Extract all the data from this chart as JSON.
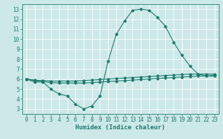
{
  "line1_x": [
    0,
    1,
    2,
    3,
    4,
    5,
    6,
    7,
    8,
    9,
    10,
    11,
    12,
    13,
    14,
    15,
    16,
    17,
    18,
    19,
    20,
    21,
    22,
    23
  ],
  "line1_y": [
    6.0,
    5.7,
    5.7,
    5.0,
    4.5,
    4.3,
    3.5,
    3.0,
    3.3,
    4.3,
    7.8,
    10.5,
    11.8,
    12.9,
    13.0,
    12.9,
    12.2,
    11.3,
    9.7,
    8.4,
    7.3,
    6.5,
    6.3,
    6.4
  ],
  "line2_x": [
    0,
    1,
    2,
    3,
    4,
    5,
    6,
    7,
    8,
    9,
    10,
    11,
    12,
    13,
    14,
    15,
    16,
    17,
    18,
    19,
    20,
    21,
    22,
    23
  ],
  "line2_y": [
    6.0,
    5.9,
    5.85,
    5.8,
    5.8,
    5.8,
    5.8,
    5.85,
    5.9,
    5.95,
    6.0,
    6.05,
    6.1,
    6.15,
    6.2,
    6.25,
    6.3,
    6.35,
    6.4,
    6.45,
    6.5,
    6.5,
    6.5,
    6.5
  ],
  "line3_x": [
    0,
    1,
    2,
    3,
    4,
    5,
    6,
    7,
    8,
    9,
    10,
    11,
    12,
    13,
    14,
    15,
    16,
    17,
    18,
    19,
    20,
    21,
    22,
    23
  ],
  "line3_y": [
    6.0,
    5.85,
    5.75,
    5.65,
    5.6,
    5.6,
    5.6,
    5.6,
    5.65,
    5.7,
    5.75,
    5.8,
    5.85,
    5.9,
    5.95,
    6.0,
    6.05,
    6.1,
    6.15,
    6.2,
    6.25,
    6.3,
    6.3,
    6.3
  ],
  "line_color": "#1a7a6e",
  "bg_color": "#cde8e8",
  "grid_color": "#ffffff",
  "xlabel": "Humidex (Indice chaleur)",
  "xlim": [
    -0.5,
    23.5
  ],
  "ylim": [
    2.5,
    13.5
  ],
  "xticks": [
    0,
    1,
    2,
    3,
    4,
    5,
    6,
    7,
    8,
    9,
    10,
    11,
    12,
    13,
    14,
    15,
    16,
    17,
    18,
    19,
    20,
    21,
    22,
    23
  ],
  "yticks": [
    3,
    4,
    5,
    6,
    7,
    8,
    9,
    10,
    11,
    12,
    13
  ],
  "title_fontsize": 7,
  "xlabel_fontsize": 6.5,
  "tick_fontsize": 5.5
}
